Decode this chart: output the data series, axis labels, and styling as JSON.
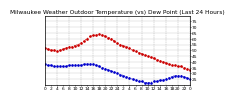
{
  "title": "Milwaukee Weather Outdoor Temperature (vs) Dew Point (Last 24 Hours)",
  "temp_color": "#cc0000",
  "dew_color": "#0000cc",
  "bg_color": "#ffffff",
  "grid_color": "#aaaaaa",
  "ylim": [
    20,
    80
  ],
  "xlim": [
    0,
    48
  ],
  "yticks": [
    25,
    30,
    35,
    40,
    45,
    50,
    55,
    60,
    65,
    70,
    75
  ],
  "ytick_labels": [
    "25",
    "30",
    "35",
    "40",
    "45",
    "50",
    "55",
    "60",
    "65",
    "70",
    "75"
  ],
  "temp_x": [
    0,
    1,
    2,
    3,
    4,
    5,
    6,
    7,
    8,
    9,
    10,
    11,
    12,
    13,
    14,
    15,
    16,
    17,
    18,
    19,
    20,
    21,
    22,
    23,
    24,
    25,
    26,
    27,
    28,
    29,
    30,
    31,
    32,
    33,
    34,
    35,
    36,
    37,
    38,
    39,
    40,
    41,
    42,
    43,
    44,
    45,
    46,
    47,
    48
  ],
  "temp_y": [
    52,
    51,
    50,
    50,
    49,
    50,
    51,
    52,
    53,
    53,
    54,
    55,
    56,
    58,
    60,
    62,
    63,
    63,
    64,
    63,
    62,
    61,
    60,
    58,
    56,
    55,
    54,
    53,
    52,
    50,
    49,
    48,
    47,
    46,
    45,
    44,
    43,
    42,
    41,
    40,
    39,
    38,
    37,
    37,
    36,
    36,
    35,
    34,
    33
  ],
  "dew_x": [
    0,
    1,
    2,
    3,
    4,
    5,
    6,
    7,
    8,
    9,
    10,
    11,
    12,
    13,
    14,
    15,
    16,
    17,
    18,
    19,
    20,
    21,
    22,
    23,
    24,
    25,
    26,
    27,
    28,
    29,
    30,
    31,
    32,
    33,
    34,
    35,
    36,
    37,
    38,
    39,
    40,
    41,
    42,
    43,
    44,
    45,
    46,
    47,
    48
  ],
  "dew_y": [
    38,
    37,
    37,
    36,
    36,
    36,
    36,
    36,
    37,
    37,
    37,
    37,
    37,
    38,
    38,
    38,
    38,
    37,
    36,
    35,
    34,
    33,
    32,
    31,
    30,
    29,
    28,
    27,
    26,
    25,
    24,
    23,
    23,
    22,
    22,
    22,
    23,
    23,
    24,
    24,
    25,
    26,
    27,
    28,
    28,
    28,
    27,
    26,
    25
  ],
  "vgrid_x": [
    0,
    4,
    8,
    12,
    16,
    20,
    24,
    28,
    32,
    36,
    40,
    44,
    48
  ],
  "xtick_positions": [
    0,
    2,
    4,
    6,
    8,
    10,
    12,
    14,
    16,
    18,
    20,
    22,
    24,
    26,
    28,
    30,
    32,
    34,
    36,
    38,
    40,
    42,
    44,
    46,
    48
  ],
  "xtick_labels": [
    "0",
    "2",
    "4",
    "6",
    "8",
    "10",
    "12",
    "14",
    "16",
    "18",
    "20",
    "22",
    "24",
    "2",
    "4",
    "6",
    "8",
    "10",
    "12",
    "14",
    "16",
    "18",
    "20",
    "22",
    "0"
  ],
  "marker_size": 1.8,
  "linewidth": 0.7,
  "title_fontsize": 4.2,
  "tick_fontsize": 3.2,
  "ylabel_fontsize": 3.2
}
